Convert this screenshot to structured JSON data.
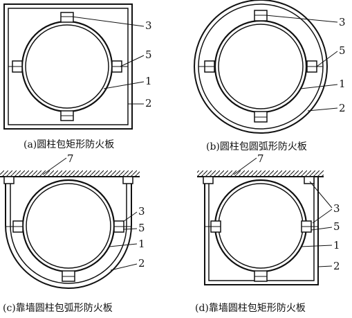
{
  "panels": [
    {
      "id": "a",
      "caption": "(a)圆柱包矩形防火板",
      "labels": [
        "3",
        "5",
        "1",
        "2"
      ]
    },
    {
      "id": "b",
      "caption": "(b)圆柱包圆弧形防火板",
      "labels": [
        "3",
        "5",
        "1",
        "2"
      ]
    },
    {
      "id": "c",
      "caption": "(c)靠墙圆柱包弧形防火板",
      "labels": [
        "7",
        "3",
        "5",
        "1",
        "2"
      ]
    },
    {
      "id": "d",
      "caption": "(d)靠墙圆柱包矩形防火板",
      "labels": [
        "7",
        "3",
        "5",
        "1",
        "2"
      ]
    }
  ],
  "colors": {
    "ink": "#111111",
    "background": "#ffffff"
  }
}
